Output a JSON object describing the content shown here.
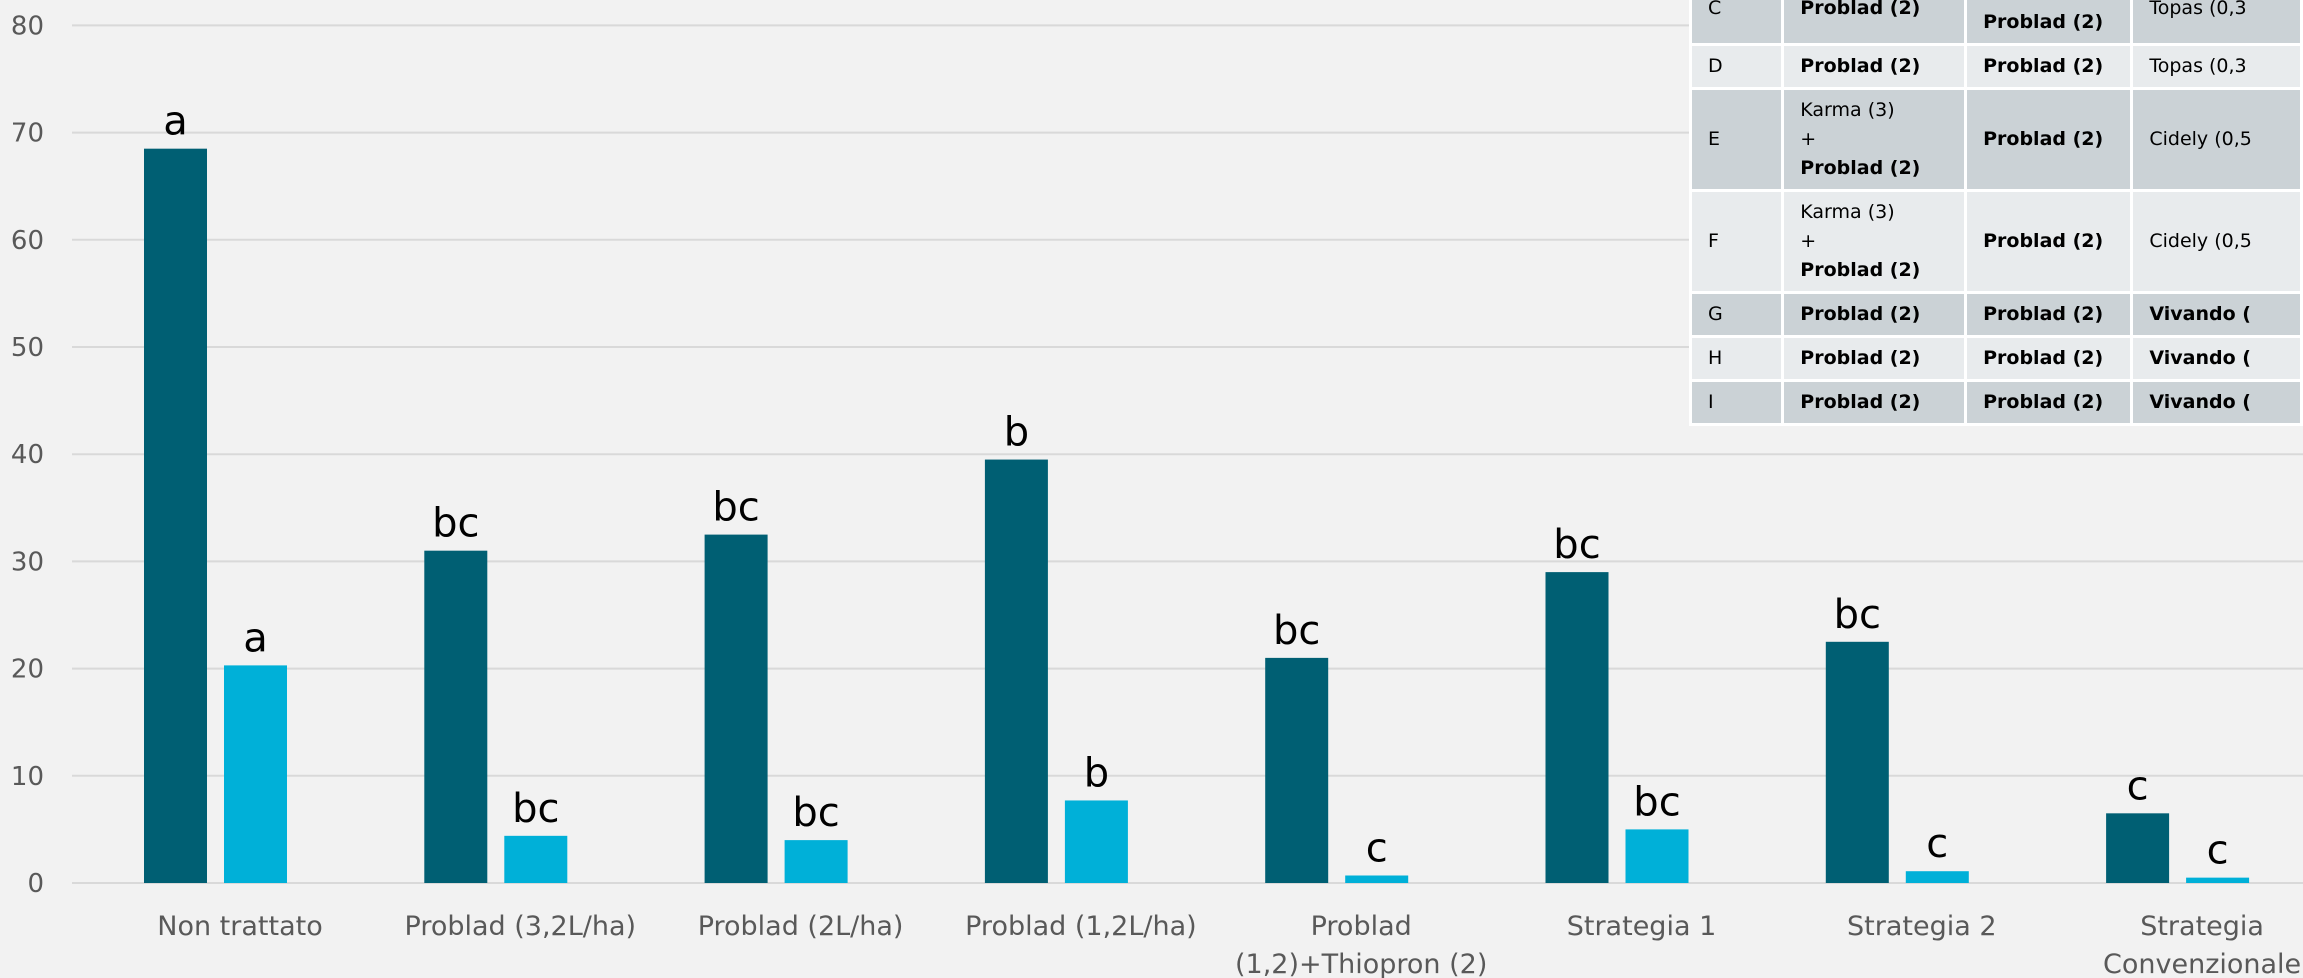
{
  "colors": {
    "series1": "#005f73",
    "series2": "#00b0d8",
    "grid": "#d9d9d9",
    "background": "#f2f2f2"
  },
  "chart_data": {
    "type": "bar",
    "title": "",
    "xlabel": "",
    "ylabel": "",
    "ylim": [
      0,
      80
    ],
    "yticks": [
      0,
      10,
      20,
      30,
      40,
      50,
      60,
      70,
      80
    ],
    "grid": true,
    "categories": [
      [
        "Non trattato"
      ],
      [
        "Problad (3,2L/ha)"
      ],
      [
        "Problad (2L/ha)"
      ],
      [
        "Problad (1,2L/ha)"
      ],
      [
        "Problad",
        "(1,2)+Thiopron (2)"
      ],
      [
        "Strategia 1"
      ],
      [
        "Strategia 2"
      ],
      [
        "Strategia",
        "Convenzionale"
      ]
    ],
    "series": [
      {
        "values": [
          68.5,
          31,
          32.5,
          39.5,
          21,
          29,
          22.5,
          6.5
        ],
        "labels": [
          "a",
          "bc",
          "bc",
          "b",
          "bc",
          "bc",
          "bc",
          "c"
        ]
      },
      {
        "values": [
          20.3,
          4.4,
          4.0,
          7.7,
          0.7,
          5.0,
          1.1,
          0.5
        ],
        "labels": [
          "a",
          "bc",
          "bc",
          "b",
          "c",
          "bc",
          "c",
          "c"
        ]
      }
    ]
  },
  "table": {
    "rows": [
      {
        "cells": [
          [
            {
              "t": "C",
              "b": false
            }
          ],
          [
            {
              "t": "Problad (2)",
              "b": true
            }
          ],
          [
            {
              "t": "+",
              "b": false
            },
            {
              "t": "Problad (2)",
              "b": true
            }
          ],
          [
            {
              "t": "Topas (0,3",
              "b": false
            }
          ]
        ]
      },
      {
        "cells": [
          [
            {
              "t": "D",
              "b": false
            }
          ],
          [
            {
              "t": "Problad (2)",
              "b": true
            }
          ],
          [
            {
              "t": "Problad (2)",
              "b": true
            }
          ],
          [
            {
              "t": "Topas (0,3",
              "b": false
            }
          ]
        ]
      },
      {
        "cells": [
          [
            {
              "t": "E",
              "b": false
            }
          ],
          [
            {
              "t": "Karma (3)",
              "b": false
            },
            {
              "t": "+",
              "b": false
            },
            {
              "t": "Problad (2)",
              "b": true
            }
          ],
          [
            {
              "t": "Problad (2)",
              "b": true
            }
          ],
          [
            {
              "t": "Cidely (0,5",
              "b": false
            }
          ]
        ]
      },
      {
        "cells": [
          [
            {
              "t": "F",
              "b": false
            }
          ],
          [
            {
              "t": "Karma (3)",
              "b": false
            },
            {
              "t": "+",
              "b": false
            },
            {
              "t": "Problad (2)",
              "b": true
            }
          ],
          [
            {
              "t": "Problad (2)",
              "b": true
            }
          ],
          [
            {
              "t": "Cidely (0,5",
              "b": false
            }
          ]
        ]
      },
      {
        "cells": [
          [
            {
              "t": "G",
              "b": false
            }
          ],
          [
            {
              "t": "Problad (2)",
              "b": true
            }
          ],
          [
            {
              "t": "Problad (2)",
              "b": true
            }
          ],
          [
            {
              "t": "Vivando (",
              "b": true
            }
          ]
        ]
      },
      {
        "cells": [
          [
            {
              "t": "H",
              "b": false
            }
          ],
          [
            {
              "t": "Problad (2)",
              "b": true
            }
          ],
          [
            {
              "t": "Problad (2)",
              "b": true
            }
          ],
          [
            {
              "t": "Vivando (",
              "b": true
            }
          ]
        ]
      },
      {
        "cells": [
          [
            {
              "t": "I",
              "b": false
            }
          ],
          [
            {
              "t": "Problad (2)",
              "b": true
            }
          ],
          [
            {
              "t": "Problad (2)",
              "b": true
            }
          ],
          [
            {
              "t": "Vivando (",
              "b": true
            }
          ]
        ]
      }
    ]
  }
}
